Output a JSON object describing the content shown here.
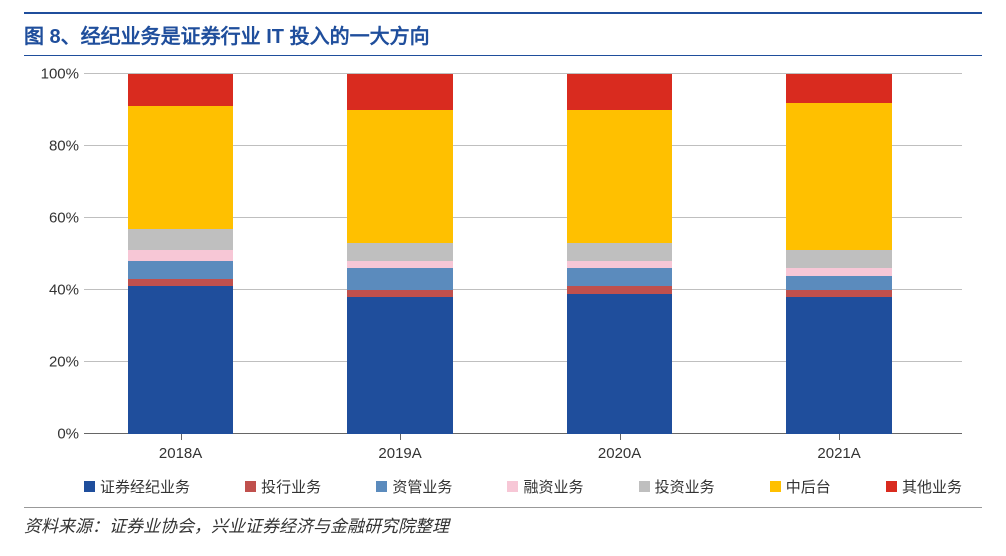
{
  "title": "图 8、经纪业务是证券行业 IT 投入的一大方向",
  "source": "资料来源：证券业协会，兴业证券经济与金融研究院整理",
  "chart": {
    "type": "stacked-bar-100",
    "ylim": [
      0,
      100
    ],
    "ytick_step": 20,
    "ytick_suffix": "%",
    "grid_color": "#bfbfbf",
    "background_color": "#ffffff",
    "axis_fontsize": 15,
    "bar_width_pct": 12,
    "bar_positions_pct": [
      11,
      36,
      61,
      86
    ],
    "categories": [
      "2018A",
      "2019A",
      "2020A",
      "2021A"
    ],
    "series": [
      {
        "name": "证券经纪业务",
        "color": "#1f4e9c",
        "values": [
          41,
          38,
          39,
          38
        ]
      },
      {
        "name": "投行业务",
        "color": "#c0504d",
        "values": [
          2,
          2,
          2,
          2
        ]
      },
      {
        "name": "资管业务",
        "color": "#5b8bbd",
        "values": [
          5,
          6,
          5,
          4
        ]
      },
      {
        "name": "融资业务",
        "color": "#f7c7d6",
        "values": [
          3,
          2,
          2,
          2
        ]
      },
      {
        "name": "投资业务",
        "color": "#bfbfbf",
        "values": [
          6,
          5,
          5,
          5
        ]
      },
      {
        "name": "中后台",
        "color": "#ffc000",
        "values": [
          34,
          37,
          37,
          41
        ]
      },
      {
        "name": "其他业务",
        "color": "#d92b1f",
        "values": [
          9,
          10,
          10,
          8
        ]
      }
    ]
  }
}
